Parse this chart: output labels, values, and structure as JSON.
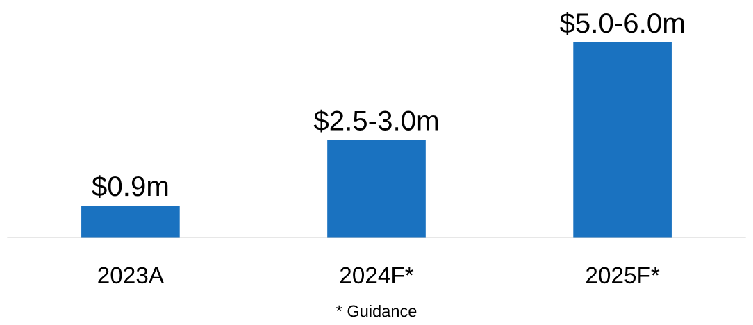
{
  "chart_data": {
    "type": "bar",
    "categories": [
      "2023A",
      "2024F*",
      "2025F*"
    ],
    "values": [
      0.9,
      2.75,
      5.5
    ],
    "value_labels": [
      "$0.9m",
      "$2.5-3.0m",
      "$5.0-6.0m"
    ],
    "color": "#1a72c0",
    "grid": false,
    "legend": false,
    "annotations": [
      "* Guidance"
    ]
  }
}
